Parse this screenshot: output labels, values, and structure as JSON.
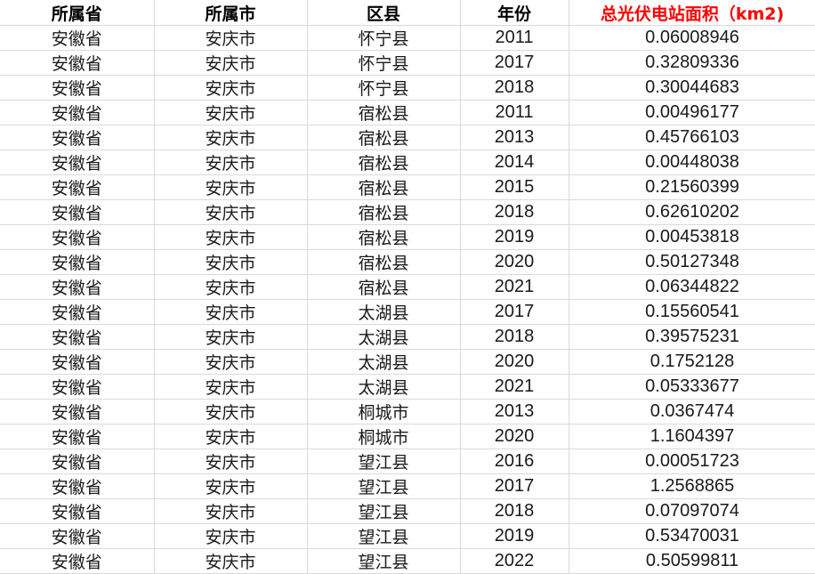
{
  "columns": [
    "所属省",
    "所属市",
    "区县",
    "年份",
    "总光伏电站面积（km2)"
  ],
  "header_highlight_color": "#ff0000",
  "rows": [
    [
      "安徽省",
      "安庆市",
      "怀宁县",
      "2011",
      "0.06008946"
    ],
    [
      "安徽省",
      "安庆市",
      "怀宁县",
      "2017",
      "0.32809336"
    ],
    [
      "安徽省",
      "安庆市",
      "怀宁县",
      "2018",
      "0.30044683"
    ],
    [
      "安徽省",
      "安庆市",
      "宿松县",
      "2011",
      "0.00496177"
    ],
    [
      "安徽省",
      "安庆市",
      "宿松县",
      "2013",
      "0.45766103"
    ],
    [
      "安徽省",
      "安庆市",
      "宿松县",
      "2014",
      "0.00448038"
    ],
    [
      "安徽省",
      "安庆市",
      "宿松县",
      "2015",
      "0.21560399"
    ],
    [
      "安徽省",
      "安庆市",
      "宿松县",
      "2018",
      "0.62610202"
    ],
    [
      "安徽省",
      "安庆市",
      "宿松县",
      "2019",
      "0.00453818"
    ],
    [
      "安徽省",
      "安庆市",
      "宿松县",
      "2020",
      "0.50127348"
    ],
    [
      "安徽省",
      "安庆市",
      "宿松县",
      "2021",
      "0.06344822"
    ],
    [
      "安徽省",
      "安庆市",
      "太湖县",
      "2017",
      "0.15560541"
    ],
    [
      "安徽省",
      "安庆市",
      "太湖县",
      "2018",
      "0.39575231"
    ],
    [
      "安徽省",
      "安庆市",
      "太湖县",
      "2020",
      "0.1752128"
    ],
    [
      "安徽省",
      "安庆市",
      "太湖县",
      "2021",
      "0.05333677"
    ],
    [
      "安徽省",
      "安庆市",
      "桐城市",
      "2013",
      "0.0367474"
    ],
    [
      "安徽省",
      "安庆市",
      "桐城市",
      "2020",
      "1.1604397"
    ],
    [
      "安徽省",
      "安庆市",
      "望江县",
      "2016",
      "0.00051723"
    ],
    [
      "安徽省",
      "安庆市",
      "望江县",
      "2017",
      "1.2568865"
    ],
    [
      "安徽省",
      "安庆市",
      "望江县",
      "2018",
      "0.07097074"
    ],
    [
      "安徽省",
      "安庆市",
      "望江县",
      "2019",
      "0.53470031"
    ],
    [
      "安徽省",
      "安庆市",
      "望江县",
      "2022",
      "0.50599811"
    ]
  ]
}
